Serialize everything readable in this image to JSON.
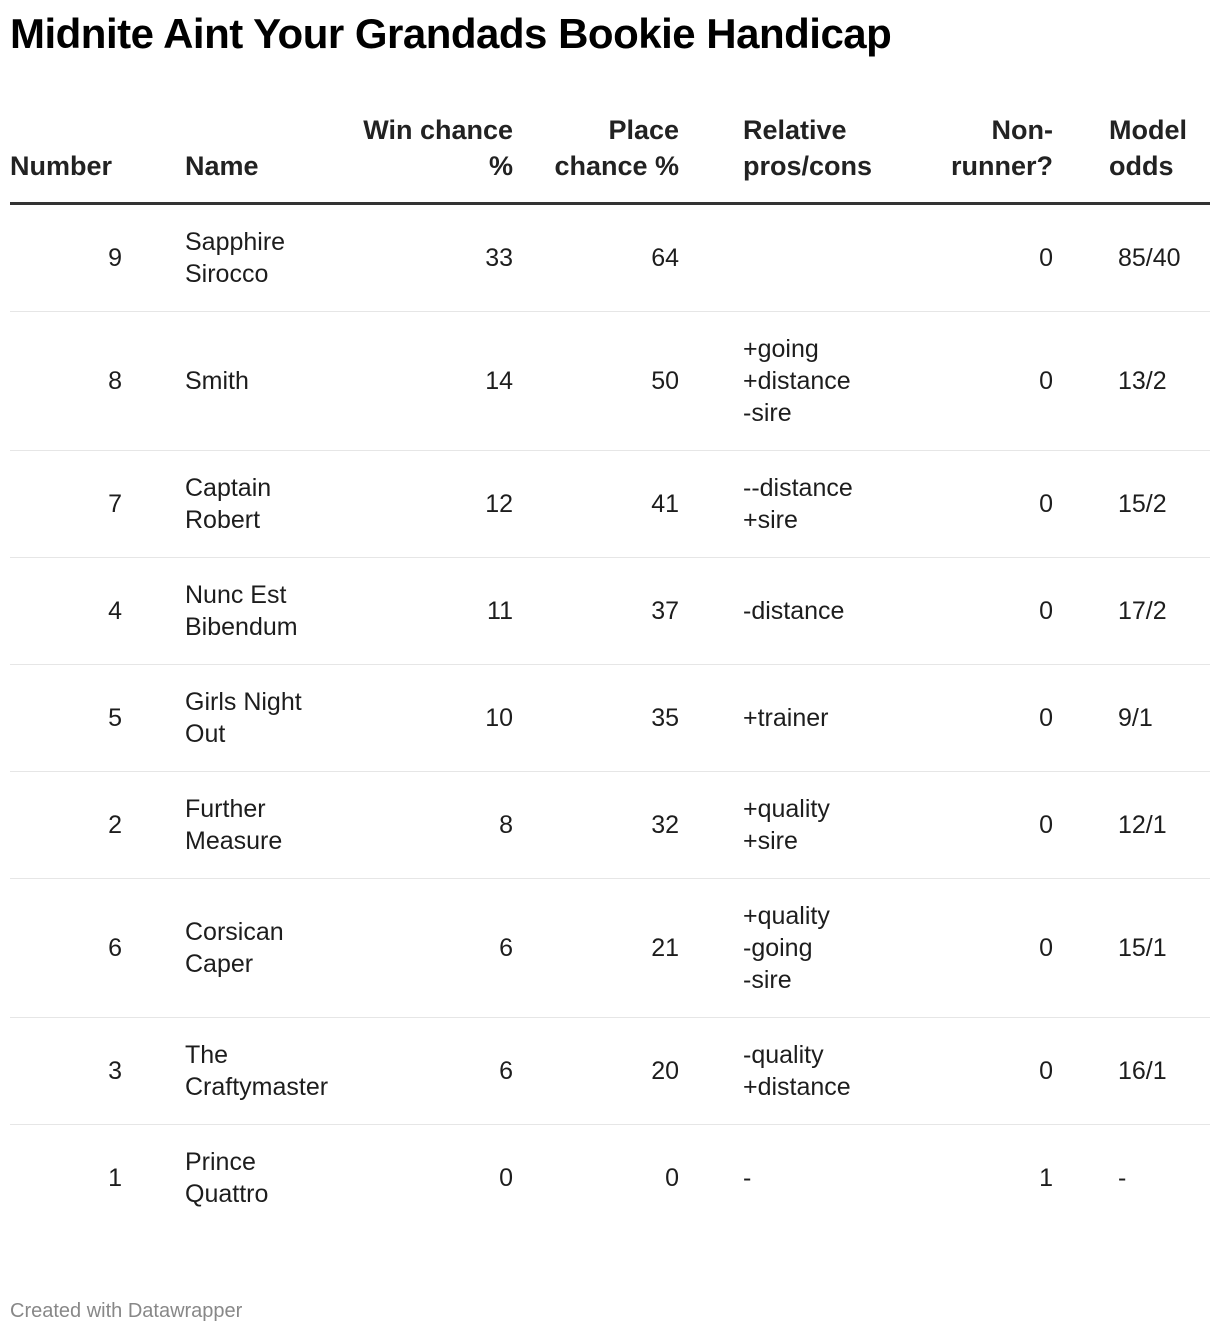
{
  "title": "Midnite Aint Your Grandads Bookie Handicap",
  "columns": {
    "number": "Number",
    "name": "Name",
    "win": "Win chance %",
    "place": "Place chance %",
    "pros_cons": "Relative pros/cons",
    "non_runner": "Non-runner?",
    "odds": "Model odds"
  },
  "rows": [
    {
      "number": "9",
      "name": "Sapphire Sirocco",
      "win": "33",
      "place": "64",
      "pros_cons": "",
      "non_runner": "0",
      "odds": "85/40"
    },
    {
      "number": "8",
      "name": "Smith",
      "win": "14",
      "place": "50",
      "pros_cons": "+going\n+distance\n-sire",
      "non_runner": "0",
      "odds": "13/2"
    },
    {
      "number": "7",
      "name": "Captain Robert",
      "win": "12",
      "place": "41",
      "pros_cons": "--distance\n+sire",
      "non_runner": "0",
      "odds": "15/2"
    },
    {
      "number": "4",
      "name": "Nunc Est Bibendum",
      "win": "11",
      "place": "37",
      "pros_cons": "-distance",
      "non_runner": "0",
      "odds": "17/2"
    },
    {
      "number": "5",
      "name": "Girls Night Out",
      "win": "10",
      "place": "35",
      "pros_cons": "+trainer",
      "non_runner": "0",
      "odds": "9/1"
    },
    {
      "number": "2",
      "name": "Further Measure",
      "win": "8",
      "place": "32",
      "pros_cons": "+quality\n+sire",
      "non_runner": "0",
      "odds": "12/1"
    },
    {
      "number": "6",
      "name": "Corsican Caper",
      "win": "6",
      "place": "21",
      "pros_cons": "+quality\n-going\n-sire",
      "non_runner": "0",
      "odds": "15/1"
    },
    {
      "number": "3",
      "name": "The Craftymaster",
      "win": "6",
      "place": "20",
      "pros_cons": "-quality\n+distance",
      "non_runner": "0",
      "odds": "16/1"
    },
    {
      "number": "1",
      "name": "Prince Quattro",
      "win": "0",
      "place": "0",
      "pros_cons": "-",
      "non_runner": "1",
      "odds": "-"
    }
  ],
  "footer": "Created with Datawrapper"
}
